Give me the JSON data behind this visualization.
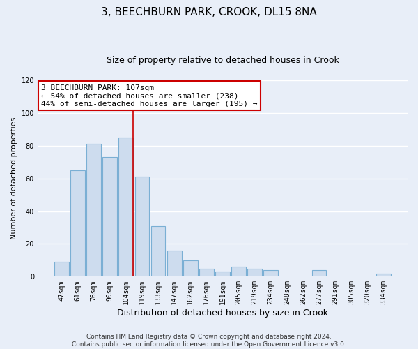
{
  "title": "3, BEECHBURN PARK, CROOK, DL15 8NA",
  "subtitle": "Size of property relative to detached houses in Crook",
  "xlabel": "Distribution of detached houses by size in Crook",
  "ylabel": "Number of detached properties",
  "categories": [
    "47sqm",
    "61sqm",
    "76sqm",
    "90sqm",
    "104sqm",
    "119sqm",
    "133sqm",
    "147sqm",
    "162sqm",
    "176sqm",
    "191sqm",
    "205sqm",
    "219sqm",
    "234sqm",
    "248sqm",
    "262sqm",
    "277sqm",
    "291sqm",
    "305sqm",
    "320sqm",
    "334sqm"
  ],
  "values": [
    9,
    65,
    81,
    73,
    85,
    61,
    31,
    16,
    10,
    5,
    3,
    6,
    5,
    4,
    0,
    0,
    4,
    0,
    0,
    0,
    2
  ],
  "bar_color": "#cddcee",
  "bar_edge_color": "#7aafd4",
  "vline_x_index": 4,
  "vline_color": "#cc0000",
  "annotation_line1": "3 BEECHBURN PARK: 107sqm",
  "annotation_line2": "← 54% of detached houses are smaller (238)",
  "annotation_line3": "44% of semi-detached houses are larger (195) →",
  "annotation_box_facecolor": "#ffffff",
  "annotation_box_edgecolor": "#cc0000",
  "ylim": [
    0,
    120
  ],
  "yticks": [
    0,
    20,
    40,
    60,
    80,
    100,
    120
  ],
  "footer": "Contains HM Land Registry data © Crown copyright and database right 2024.\nContains public sector information licensed under the Open Government Licence v3.0.",
  "background_color": "#e8eef8",
  "grid_color": "#ffffff",
  "title_fontsize": 11,
  "subtitle_fontsize": 9,
  "xlabel_fontsize": 9,
  "ylabel_fontsize": 8,
  "tick_fontsize": 7,
  "annotation_fontsize": 8,
  "footer_fontsize": 6.5
}
